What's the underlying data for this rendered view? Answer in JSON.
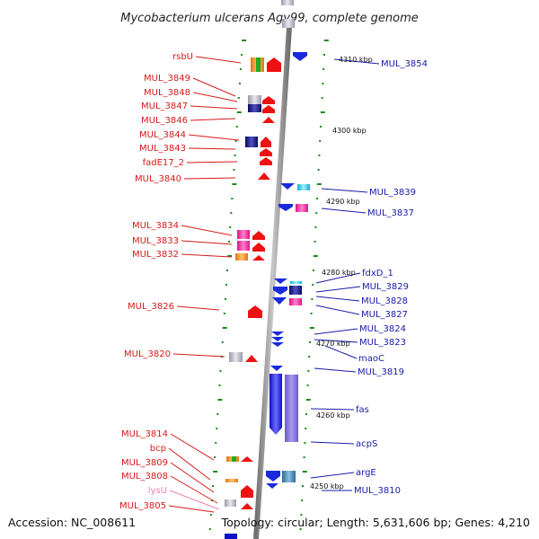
{
  "title": "Mycobacterium ulcerans Agy99, complete genome",
  "footer": {
    "accession": "Accession: NC_008611",
    "summary": "Topology: circular; Length: 5,631,606 bp; Genes: 4,210"
  },
  "colors": {
    "left_label": "#d61a1a",
    "right_label": "#1a1aa8",
    "pseudo_label": "#f080b0",
    "backbone": "#8a8a8a",
    "ticks": "#1b8a1b"
  },
  "ruler_labels": [
    "4310 kbp",
    "4300 kbp",
    "4290 kbp",
    "4280 kbp",
    "4270 kbp",
    "4260 kbp",
    "4250 kbp"
  ],
  "left_labels": [
    "rsbU",
    "MUL_3849",
    "MUL_3848",
    "MUL_3847",
    "MUL_3846",
    "MUL_3844",
    "MUL_3843",
    "fadE17_2",
    "MUL_3840",
    "MUL_3834",
    "MUL_3833",
    "MUL_3832",
    "MUL_3826",
    "MUL_3820",
    "MUL_3814",
    "bcp",
    "MUL_3809",
    "MUL_3808",
    "lysU",
    "MUL_3805"
  ],
  "right_labels": [
    "MUL_3854",
    "MUL_3839",
    "MUL_3837",
    "fdxD_1",
    "MUL_3829",
    "MUL_3828",
    "MUL_3827",
    "MUL_3824",
    "MUL_3823",
    "maoC",
    "MUL_3819",
    "fas",
    "acpS",
    "argE",
    "MUL_3810"
  ]
}
